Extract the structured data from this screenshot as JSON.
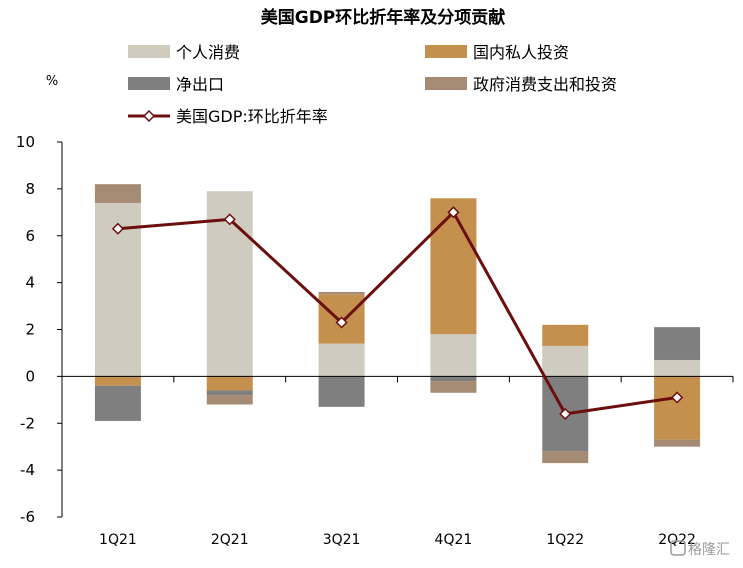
{
  "chart_data": {
    "type": "bar",
    "title": "美国GDP环比折年率及分项贡献",
    "ylabel": "%",
    "ylim": [
      -6,
      10
    ],
    "yticks": [
      -6,
      -4,
      -2,
      0,
      2,
      4,
      6,
      8,
      10
    ],
    "grid": false,
    "legend_position": "top",
    "categories": [
      "1Q21",
      "2Q21",
      "3Q21",
      "4Q21",
      "1Q22",
      "2Q22"
    ],
    "series": [
      {
        "name": "个人消费",
        "kind": "bar",
        "color": "#cfcbbe",
        "values": [
          7.4,
          7.9,
          1.4,
          1.8,
          1.3,
          0.7
        ]
      },
      {
        "name": "国内私人投资",
        "kind": "bar",
        "color": "#c4904e",
        "values": [
          -0.4,
          -0.6,
          2.1,
          5.8,
          0.9,
          -2.7
        ]
      },
      {
        "name": "净出口",
        "kind": "bar",
        "color": "#7f7f7f",
        "values": [
          -1.5,
          -0.2,
          -1.3,
          -0.2,
          -3.2,
          1.4
        ]
      },
      {
        "name": "政府消费支出和投资",
        "kind": "bar",
        "color": "#a68b74",
        "values": [
          0.8,
          -0.4,
          0.1,
          -0.5,
          -0.5,
          -0.3
        ]
      },
      {
        "name": "美国GDP:环比折年率",
        "kind": "line",
        "color": "#6b0e0e",
        "values": [
          6.3,
          6.7,
          2.3,
          7.0,
          -1.6,
          -0.9
        ]
      }
    ]
  },
  "watermark": "格隆汇"
}
